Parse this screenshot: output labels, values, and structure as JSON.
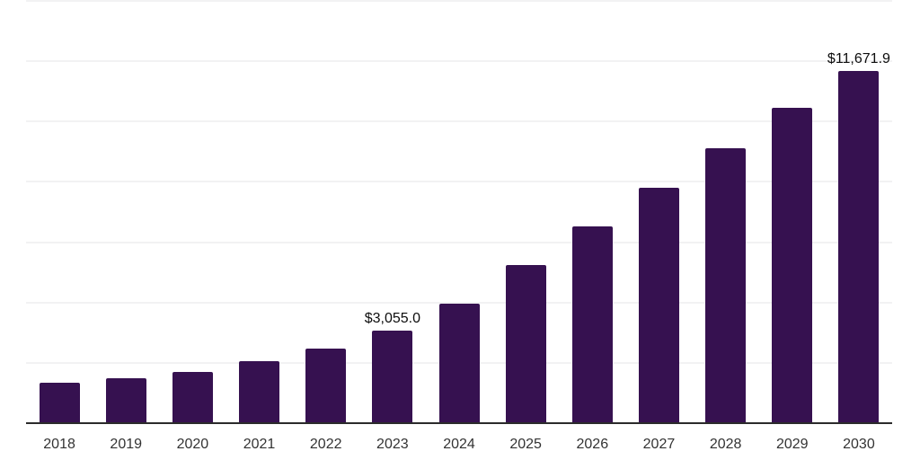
{
  "chart_data": {
    "type": "bar",
    "categories": [
      "2018",
      "2019",
      "2020",
      "2021",
      "2022",
      "2023",
      "2024",
      "2025",
      "2026",
      "2027",
      "2028",
      "2029",
      "2030"
    ],
    "values": [
      1330,
      1500,
      1710,
      2060,
      2460,
      3055.0,
      3950,
      5240,
      6520,
      7800,
      9120,
      10460,
      11671.9
    ],
    "value_labels": [
      "",
      "",
      "",
      "",
      "",
      "$3,055.0",
      "",
      "",
      "",
      "",
      "",
      "",
      "$11,671.9"
    ],
    "xlabel": "",
    "ylabel": "",
    "ylim": [
      0,
      14000
    ],
    "grid_step": 2000,
    "grid": "horizontal",
    "legend": "none",
    "y_tick_labels_visible": false,
    "colors": {
      "bar": "#361150",
      "gridline": "#f2f2f3",
      "axis_line": "#2b2b2b",
      "tick_label": "#333333",
      "data_label": "#0d0d0d",
      "background": "#ffffff"
    }
  }
}
